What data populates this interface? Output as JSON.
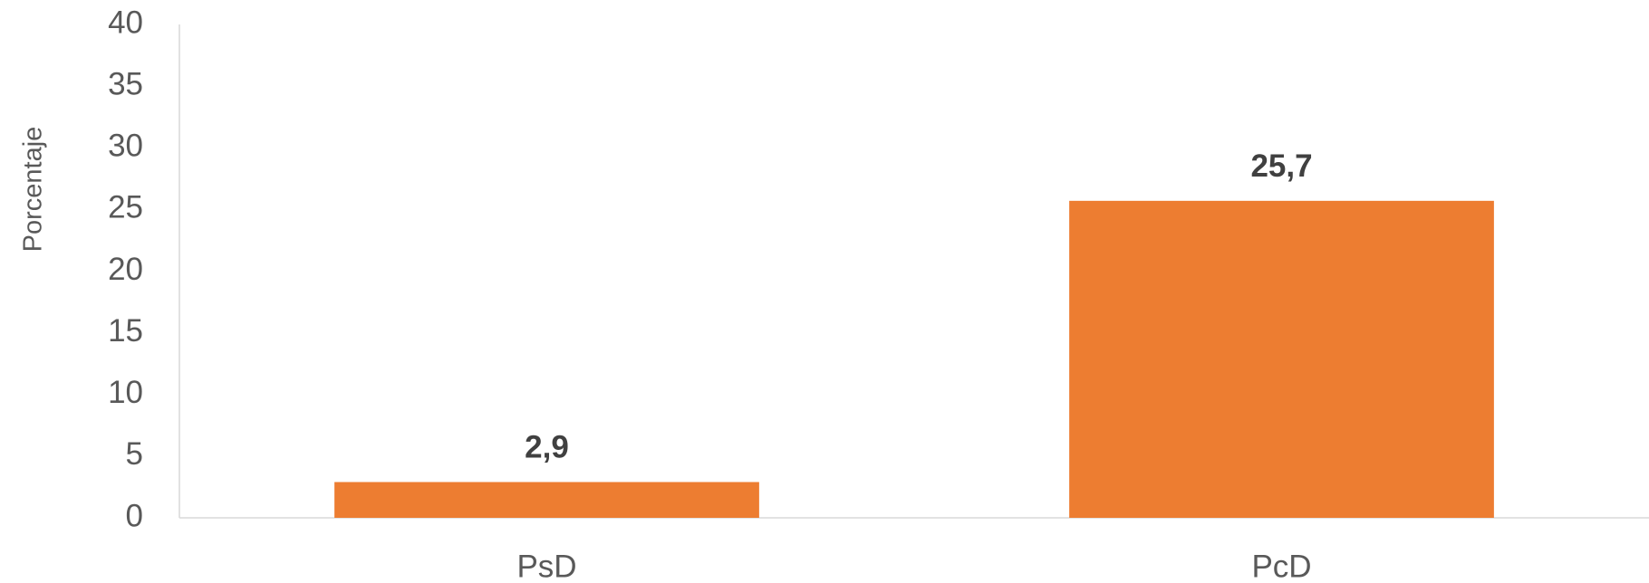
{
  "chart_data": {
    "type": "bar",
    "y_label": "Porcentaje",
    "categories": [
      "PsD",
      "PcD"
    ],
    "values": [
      2.9,
      25.7
    ],
    "value_labels": [
      "2,9",
      "25,7"
    ],
    "color": "#ED7D31",
    "ylim": [
      0,
      40
    ],
    "yticks": [
      0,
      5,
      10,
      15,
      20,
      25,
      30,
      35,
      40
    ],
    "grid": false
  }
}
